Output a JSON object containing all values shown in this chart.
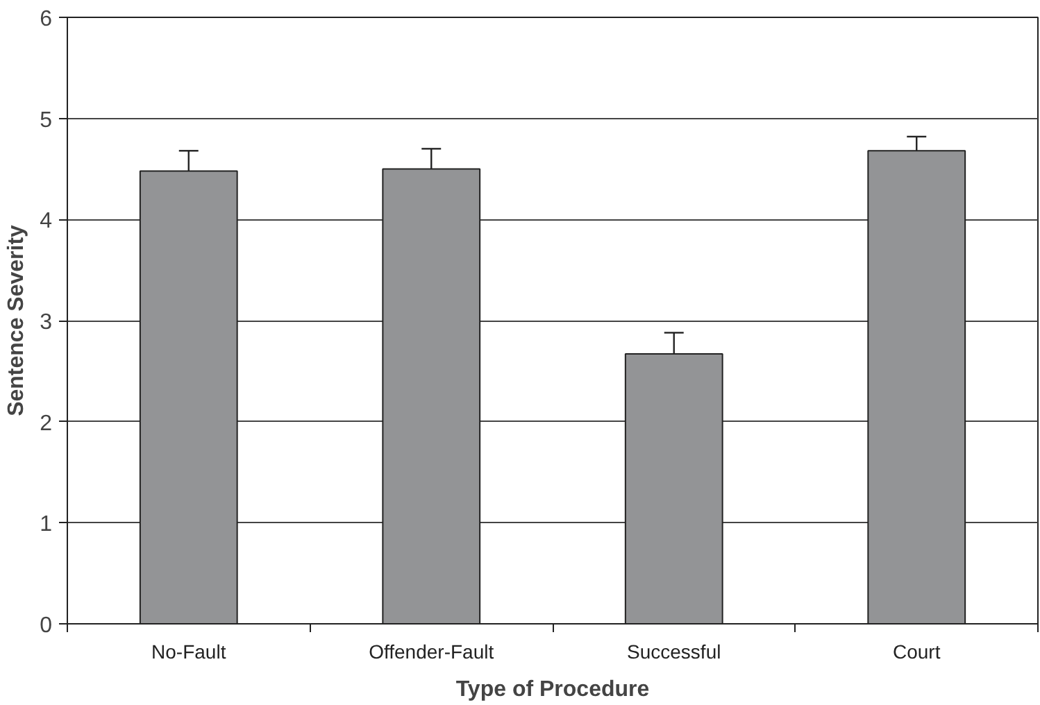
{
  "chart_data": {
    "type": "bar",
    "xlabel": "Type of Procedure",
    "ylabel": "Sentence Severity",
    "categories": [
      "No-Fault",
      "Offender-Fault",
      "Successful",
      "Court"
    ],
    "values": [
      4.48,
      4.5,
      2.67,
      4.68
    ],
    "errors": [
      [
        4.48,
        4.68
      ],
      [
        4.5,
        4.7
      ],
      [
        2.67,
        2.88
      ],
      [
        4.68,
        4.82
      ]
    ],
    "color": "#939496",
    "ylim": [
      0,
      6
    ],
    "yticks": [
      0,
      1,
      2,
      3,
      4,
      5,
      6
    ],
    "grid": "y"
  }
}
